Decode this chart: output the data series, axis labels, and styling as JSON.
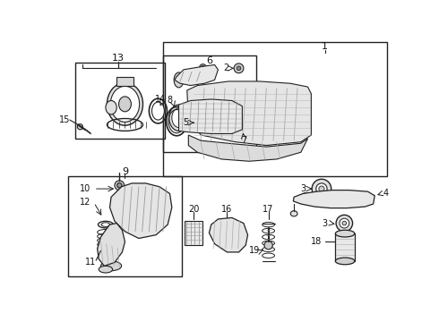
{
  "bg_color": "#ffffff",
  "fig_width": 4.9,
  "fig_height": 3.6,
  "dpi": 100,
  "line_color": "#222222",
  "fill_light": "#f0f0f0",
  "fill_white": "#ffffff"
}
